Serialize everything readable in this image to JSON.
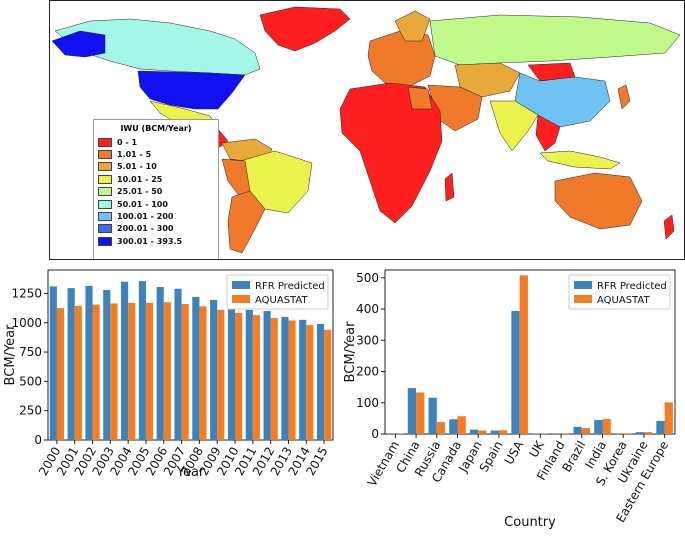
{
  "map": {
    "legend": {
      "title": "IWU (BCM/Year)",
      "items": [
        {
          "label": "0 - 1",
          "color": "#ff1f1f"
        },
        {
          "label": "1.01 - 5",
          "color": "#f07a2a"
        },
        {
          "label": "5.01 - 10",
          "color": "#e8a93a"
        },
        {
          "label": "10.01 - 25",
          "color": "#ecf24c"
        },
        {
          "label": "25.01 - 50",
          "color": "#bff98a"
        },
        {
          "label": "50.01 - 100",
          "color": "#a4f7e6"
        },
        {
          "label": "100.01 - 200",
          "color": "#6ec3f2"
        },
        {
          "label": "200.01 - 300",
          "color": "#3e6cf0"
        },
        {
          "label": "300.01 - 393.5",
          "color": "#1010f2"
        }
      ]
    }
  },
  "colors": {
    "rfr": "#3c82bd",
    "aquastat": "#f47d23"
  },
  "chart_data": [
    {
      "type": "bar",
      "xlabel": "Year",
      "ylabel": "BCM/Year",
      "ylim": [
        0,
        1450
      ],
      "yticks": [
        "0",
        "250",
        "500",
        "750",
        "1000",
        "1250"
      ],
      "categories": [
        "2000",
        "2001",
        "2002",
        "2003",
        "2004",
        "2005",
        "2006",
        "2007",
        "2008",
        "2009",
        "2010",
        "2011",
        "2012",
        "2013",
        "2014",
        "2015"
      ],
      "series": [
        {
          "name": "RFR Predicted",
          "values": [
            1310,
            1295,
            1315,
            1280,
            1350,
            1355,
            1305,
            1290,
            1220,
            1195,
            1145,
            1110,
            1100,
            1050,
            1025,
            990
          ]
        },
        {
          "name": "AQUASTAT",
          "values": [
            1125,
            1145,
            1155,
            1165,
            1170,
            1170,
            1175,
            1160,
            1140,
            1110,
            1085,
            1065,
            1040,
            1020,
            980,
            940
          ]
        }
      ],
      "legend": "top-right"
    },
    {
      "type": "bar",
      "xlabel": "Country",
      "ylabel": "BCM/Year",
      "ylim": [
        0,
        525
      ],
      "yticks": [
        "0",
        "100",
        "200",
        "300",
        "400",
        "500"
      ],
      "categories": [
        "Vietnam",
        "China",
        "Russia",
        "Canada",
        "Japan",
        "Spain",
        "USA",
        "UK",
        "Finland",
        "Brazil",
        "India",
        "S. Korea",
        "Ukraine",
        "Eastern Europe"
      ],
      "series": [
        {
          "name": "RFR Predicted",
          "values": [
            1,
            147,
            116,
            47,
            14,
            11,
            394,
            2,
            1,
            23,
            45,
            1,
            6,
            42
          ]
        },
        {
          "name": "AQUASTAT",
          "values": [
            2,
            133,
            38,
            57,
            11,
            12,
            508,
            1,
            1,
            19,
            48,
            2,
            6,
            101
          ]
        }
      ],
      "legend": "top-right"
    }
  ]
}
